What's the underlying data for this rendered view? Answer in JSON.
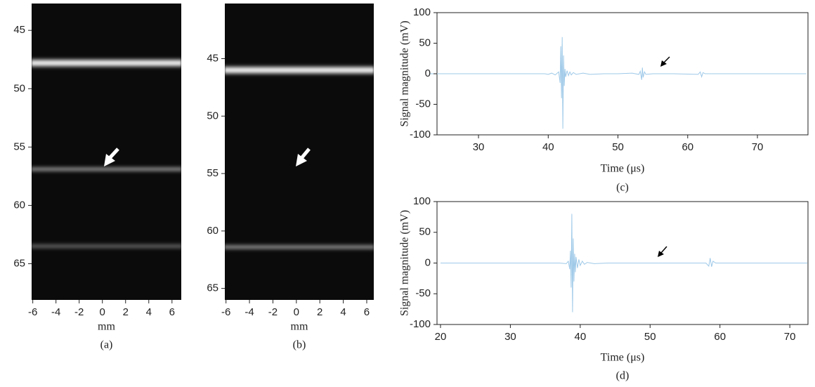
{
  "chart_data": [
    {
      "type": "image",
      "xlim": [
        -6.1,
        6.8
      ],
      "ylim": [
        68.1,
        42.7
      ],
      "xticks": [
        -6,
        -4,
        -2,
        0,
        2,
        4,
        6
      ],
      "yticks": [
        45,
        50,
        55,
        60,
        65
      ],
      "xlabel": "mm",
      "caption": "(a)",
      "bands": [
        47.8,
        56.9,
        63.5
      ]
    },
    {
      "type": "image",
      "xlim": [
        -6.1,
        6.6
      ],
      "ylim": [
        66.0,
        40.2
      ],
      "xticks": [
        -6,
        -4,
        -2,
        0,
        2,
        4,
        6
      ],
      "yticks": [
        45,
        50,
        55,
        60,
        65
      ],
      "xlabel": "mm",
      "caption": "(b)",
      "bands": [
        46.0,
        61.4
      ]
    },
    {
      "type": "line",
      "xlim": [
        24.05,
        77.25
      ],
      "ylim": [
        -100,
        100
      ],
      "xticks": [
        30,
        40,
        50,
        60,
        70
      ],
      "yticks": [
        -100,
        -50,
        0,
        50,
        100
      ],
      "xlabel": "Time (μs)",
      "ylabel": "Signal magnitude (mV)",
      "caption": "(c)",
      "color": "#9ec9e8",
      "x": [
        23,
        30,
        39.5,
        40,
        40.5,
        41,
        41.5,
        41.7,
        41.8,
        41.9,
        42.0,
        42.1,
        42.2,
        42.3,
        42.4,
        42.5,
        42.7,
        42.9,
        43.1,
        43.3,
        43.6,
        44,
        45,
        46,
        48,
        50,
        52,
        53,
        53.2,
        53.4,
        53.5,
        53.6,
        53.8,
        54,
        55,
        58,
        61.5,
        61.8,
        62,
        62.2,
        62.5,
        65,
        70,
        77
      ],
      "values": [
        0,
        0,
        0,
        -1,
        1,
        -2,
        3,
        -15,
        45,
        -40,
        60,
        -90,
        30,
        -20,
        8,
        -5,
        5,
        -3,
        3,
        -2,
        2,
        -1,
        1,
        -1,
        0,
        0,
        1,
        -1,
        4,
        -10,
        10,
        -6,
        3,
        -1,
        0,
        0,
        -1,
        3,
        -5,
        2,
        0,
        0,
        0,
        0
      ]
    },
    {
      "type": "line",
      "xlim": [
        19.5,
        72.6
      ],
      "ylim": [
        -100,
        100
      ],
      "xticks": [
        20,
        30,
        40,
        50,
        60,
        70
      ],
      "yticks": [
        -100,
        -50,
        0,
        50,
        100
      ],
      "xlabel": "Time (μs)",
      "ylabel": "Signal magnitude (mV)",
      "caption": "(d)",
      "color": "#9ec9e8",
      "x": [
        20,
        30,
        37,
        38,
        38.3,
        38.5,
        38.6,
        38.7,
        38.8,
        38.9,
        39.0,
        39.1,
        39.2,
        39.3,
        39.4,
        39.6,
        39.8,
        40.0,
        40.3,
        40.6,
        41,
        42,
        44,
        50,
        58,
        58.4,
        58.6,
        58.8,
        59,
        59.4,
        65,
        72.5
      ],
      "values": [
        0,
        0,
        0,
        -1,
        3,
        -10,
        20,
        -40,
        80,
        -80,
        40,
        -30,
        15,
        -15,
        10,
        -8,
        6,
        -4,
        3,
        -2,
        1,
        -1,
        0,
        0,
        0,
        -5,
        8,
        -6,
        3,
        0,
        0,
        0
      ]
    }
  ]
}
